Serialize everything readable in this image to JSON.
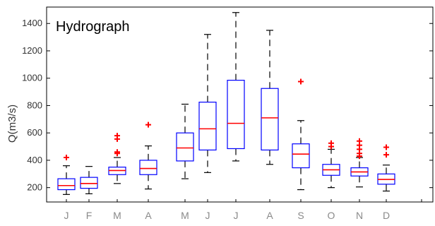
{
  "chart_data": {
    "type": "box",
    "title": "Hydrograph",
    "xlabel": "",
    "ylabel": "Q(m3/s)",
    "ylim": [
      95,
      1520
    ],
    "yticks": [
      200,
      400,
      600,
      800,
      1000,
      1200,
      1400
    ],
    "categories": [
      "J",
      "F",
      "M",
      "A",
      "M",
      "J",
      "J",
      "A",
      "S",
      "O",
      "N",
      "D",
      ""
    ],
    "box_color": "#0000ff",
    "median_color": "#ff0000",
    "whisker_color": "#000000",
    "outlier_color": "#ff0000",
    "boxes": [
      {
        "min": 150,
        "q1": 185,
        "median": 215,
        "q3": 265,
        "max": 360,
        "outliers": [
          420
        ]
      },
      {
        "min": 155,
        "q1": 195,
        "median": 230,
        "q3": 275,
        "max": 355,
        "outliers": []
      },
      {
        "min": 230,
        "q1": 295,
        "median": 325,
        "q3": 350,
        "max": 420,
        "outliers": [
          450,
          460,
          555,
          580
        ]
      },
      {
        "min": 190,
        "q1": 295,
        "median": 340,
        "q3": 400,
        "max": 505,
        "outliers": [
          660
        ]
      },
      {
        "min": 265,
        "q1": 395,
        "median": 490,
        "q3": 600,
        "max": 810,
        "outliers": []
      },
      {
        "min": 310,
        "q1": 475,
        "median": 630,
        "q3": 825,
        "max": 1320,
        "outliers": []
      },
      {
        "min": 395,
        "q1": 485,
        "median": 670,
        "q3": 985,
        "max": 1480,
        "outliers": []
      },
      {
        "min": 370,
        "q1": 475,
        "median": 710,
        "q3": 925,
        "max": 1350,
        "outliers": []
      },
      {
        "min": 185,
        "q1": 345,
        "median": 445,
        "q3": 520,
        "max": 690,
        "outliers": [
          975
        ]
      },
      {
        "min": 200,
        "q1": 290,
        "median": 330,
        "q3": 370,
        "max": 480,
        "outliers": [
          500,
          525
        ]
      },
      {
        "min": 205,
        "q1": 285,
        "median": 315,
        "q3": 345,
        "max": 420,
        "outliers": [
          430,
          450,
          480,
          510,
          540
        ]
      },
      {
        "min": 175,
        "q1": 225,
        "median": 260,
        "q3": 300,
        "max": 365,
        "outliers": [
          440,
          495
        ]
      }
    ]
  }
}
